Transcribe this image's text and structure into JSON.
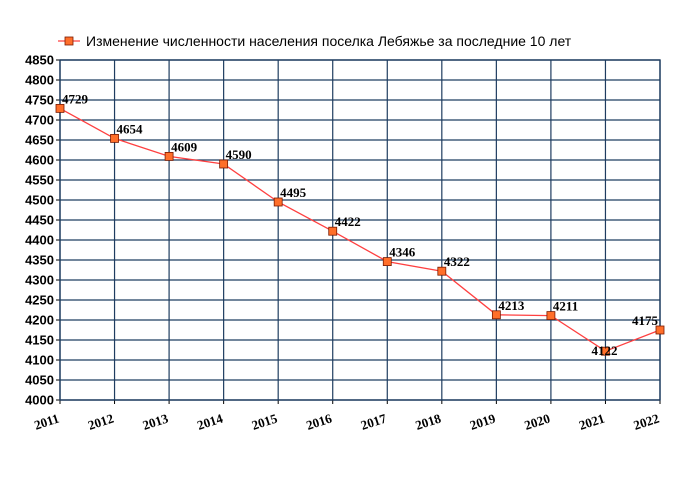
{
  "chart_data": {
    "type": "line",
    "title": "",
    "xlabel": "",
    "ylabel": "",
    "categories": [
      "2011",
      "2012",
      "2013",
      "2014",
      "2015",
      "2016",
      "2017",
      "2018",
      "2019",
      "2020",
      "2021",
      "2022"
    ],
    "series": [
      {
        "name": "Изменение численности населения поселка Лебяжье за последние 10 лет",
        "values": [
          4729,
          4654,
          4609,
          4590,
          4495,
          4422,
          4346,
          4322,
          4213,
          4211,
          4122,
          4175
        ]
      }
    ],
    "ylim": [
      4000,
      4850
    ],
    "yticks": [
      4000,
      4050,
      4100,
      4150,
      4200,
      4250,
      4300,
      4350,
      4400,
      4450,
      4500,
      4550,
      4600,
      4650,
      4700,
      4750,
      4800,
      4850
    ],
    "grid": true,
    "legend": "top-left",
    "colors": {
      "line": "#ff4040",
      "marker_fill": "#ff6f2a",
      "marker_edge": "#7a1a00",
      "grid": "#1f3d60",
      "plot_bg": "#ffffff"
    }
  }
}
